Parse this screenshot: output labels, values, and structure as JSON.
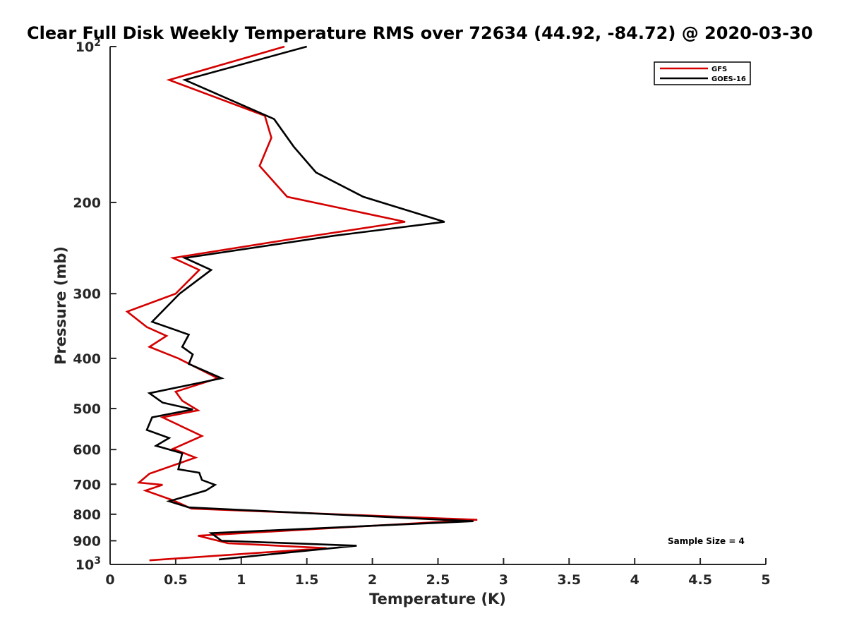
{
  "chart_data": {
    "type": "line",
    "title": "Clear Full Disk Weekly Temperature RMS over 72634 (44.92, -84.72) @ 2020-03-30",
    "xlabel": "Temperature (K)",
    "ylabel": "Pressure (mb)",
    "xlim": [
      0,
      5
    ],
    "ylim": [
      100,
      1000
    ],
    "yscale": "log",
    "y_reversed": true,
    "x_ticks": [
      "0",
      "0.5",
      "1",
      "1.5",
      "2",
      "2.5",
      "3",
      "3.5",
      "4",
      "4.5",
      "5"
    ],
    "x_tick_values": [
      0,
      0.5,
      1,
      1.5,
      2,
      2.5,
      3,
      3.5,
      4,
      4.5,
      5
    ],
    "y_ticks": [
      {
        "value": 100,
        "base": "10",
        "exp": "2"
      },
      {
        "value": 200,
        "label": "200"
      },
      {
        "value": 300,
        "label": "300"
      },
      {
        "value": 400,
        "label": "400"
      },
      {
        "value": 500,
        "label": "500"
      },
      {
        "value": 600,
        "label": "600"
      },
      {
        "value": 700,
        "label": "700"
      },
      {
        "value": 800,
        "label": "800"
      },
      {
        "value": 900,
        "label": "900"
      },
      {
        "value": 1000,
        "base": "10",
        "exp": "3"
      }
    ],
    "legend_position": "top-right",
    "annotation": "Sample Size = 4",
    "series": [
      {
        "name": "GFS",
        "color": "#d40000",
        "points": [
          [
            1.33,
            100
          ],
          [
            0.45,
            116
          ],
          [
            1.18,
            136
          ],
          [
            1.23,
            150
          ],
          [
            1.14,
            170
          ],
          [
            1.35,
            195
          ],
          [
            2.25,
            218
          ],
          [
            1.4,
            235
          ],
          [
            0.48,
            256
          ],
          [
            0.68,
            270
          ],
          [
            0.5,
            300
          ],
          [
            0.13,
            325
          ],
          [
            0.28,
            348
          ],
          [
            0.43,
            362
          ],
          [
            0.3,
            380
          ],
          [
            0.52,
            400
          ],
          [
            0.82,
            437
          ],
          [
            0.5,
            464
          ],
          [
            0.55,
            483
          ],
          [
            0.67,
            504
          ],
          [
            0.4,
            520
          ],
          [
            0.7,
            565
          ],
          [
            0.48,
            598
          ],
          [
            0.65,
            622
          ],
          [
            0.3,
            668
          ],
          [
            0.22,
            695
          ],
          [
            0.4,
            702
          ],
          [
            0.27,
            720
          ],
          [
            0.48,
            752
          ],
          [
            0.62,
            780
          ],
          [
            2.8,
            820
          ],
          [
            0.67,
            880
          ],
          [
            0.9,
            910
          ],
          [
            1.65,
            930
          ],
          [
            0.3,
            982
          ]
        ]
      },
      {
        "name": "GOES-16",
        "color": "#000000",
        "points": [
          [
            1.5,
            100
          ],
          [
            0.57,
            116
          ],
          [
            1.25,
            138
          ],
          [
            1.4,
            156
          ],
          [
            1.57,
            175
          ],
          [
            1.93,
            195
          ],
          [
            2.55,
            218
          ],
          [
            1.7,
            232
          ],
          [
            0.57,
            256
          ],
          [
            0.77,
            270
          ],
          [
            0.53,
            300
          ],
          [
            0.32,
            340
          ],
          [
            0.6,
            360
          ],
          [
            0.55,
            380
          ],
          [
            0.63,
            393
          ],
          [
            0.6,
            410
          ],
          [
            0.85,
            437
          ],
          [
            0.3,
            467
          ],
          [
            0.4,
            487
          ],
          [
            0.63,
            502
          ],
          [
            0.32,
            520
          ],
          [
            0.28,
            550
          ],
          [
            0.45,
            570
          ],
          [
            0.35,
            590
          ],
          [
            0.55,
            610
          ],
          [
            0.52,
            655
          ],
          [
            0.68,
            665
          ],
          [
            0.7,
            687
          ],
          [
            0.8,
            702
          ],
          [
            0.73,
            720
          ],
          [
            0.45,
            755
          ],
          [
            0.6,
            776
          ],
          [
            2.77,
            825
          ],
          [
            0.77,
            870
          ],
          [
            0.85,
            900
          ],
          [
            1.88,
            920
          ],
          [
            0.83,
            978
          ]
        ]
      }
    ]
  }
}
